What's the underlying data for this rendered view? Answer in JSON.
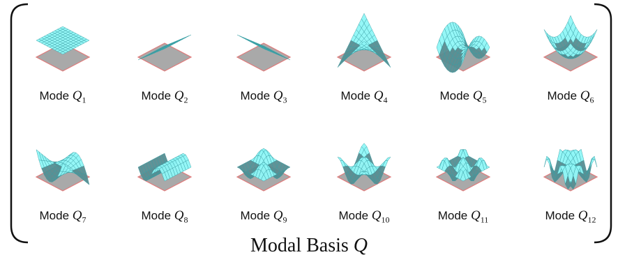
{
  "figure": {
    "caption_text": "Modal Basis",
    "caption_symbol": "Q",
    "colors": {
      "surface": "#8ff7f7",
      "mesh": "#3a9ea4",
      "shadow": "#5a8c90",
      "base_plane": "#a9a9a9",
      "base_edge": "#e07a7a"
    }
  },
  "modes": [
    {
      "text": "Mode",
      "symbol": "Q",
      "index": "1"
    },
    {
      "text": "Mode",
      "symbol": "Q",
      "index": "2"
    },
    {
      "text": "Mode",
      "symbol": "Q",
      "index": "3"
    },
    {
      "text": "Mode",
      "symbol": "Q",
      "index": "4"
    },
    {
      "text": "Mode",
      "symbol": "Q",
      "index": "5"
    },
    {
      "text": "Mode",
      "symbol": "Q",
      "index": "6"
    },
    {
      "text": "Mode",
      "symbol": "Q",
      "index": "7"
    },
    {
      "text": "Mode",
      "symbol": "Q",
      "index": "8"
    },
    {
      "text": "Mode",
      "symbol": "Q",
      "index": "9"
    },
    {
      "text": "Mode",
      "symbol": "Q",
      "index": "10"
    },
    {
      "text": "Mode",
      "symbol": "Q",
      "index": "11"
    },
    {
      "text": "Mode",
      "symbol": "Q",
      "index": "12"
    }
  ]
}
